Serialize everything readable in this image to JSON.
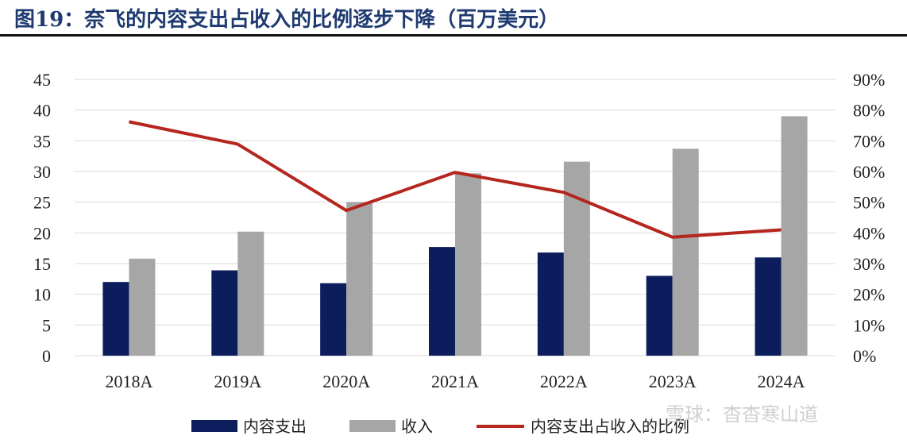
{
  "title": "图19：奈飞的内容支出占收入的比例逐步下降（百万美元）",
  "watermark": "雪球：杳杳寒山道",
  "colors": {
    "content_spend": "#0b1d5c",
    "revenue": "#a6a6a6",
    "ratio": "#b5261e",
    "grid": "#d9d9d9"
  },
  "chart_data": {
    "type": "bar",
    "categories": [
      "2018A",
      "2019A",
      "2020A",
      "2021A",
      "2022A",
      "2023A",
      "2024A"
    ],
    "series": [
      {
        "name": "内容支出",
        "type": "bar",
        "axis": "left",
        "values": [
          12.0,
          13.9,
          11.8,
          17.7,
          16.8,
          13.0,
          16.0
        ]
      },
      {
        "name": "收入",
        "type": "bar",
        "axis": "left",
        "values": [
          15.8,
          20.2,
          25.0,
          29.7,
          31.6,
          33.7,
          39.0
        ]
      },
      {
        "name": "内容支出占收入的比例",
        "type": "line",
        "axis": "right",
        "values": [
          0.762,
          0.689,
          0.473,
          0.597,
          0.532,
          0.386,
          0.41
        ]
      }
    ],
    "left_axis": {
      "ylim": [
        0,
        45
      ],
      "ticks": [
        "0",
        "5",
        "10",
        "15",
        "20",
        "25",
        "30",
        "35",
        "40",
        "45"
      ]
    },
    "right_axis": {
      "ylim": [
        0,
        0.9
      ],
      "ticks": [
        "0%",
        "10%",
        "20%",
        "30%",
        "40%",
        "50%",
        "60%",
        "70%",
        "80%",
        "90%"
      ]
    },
    "grid": true,
    "legend_position": "bottom-center"
  }
}
